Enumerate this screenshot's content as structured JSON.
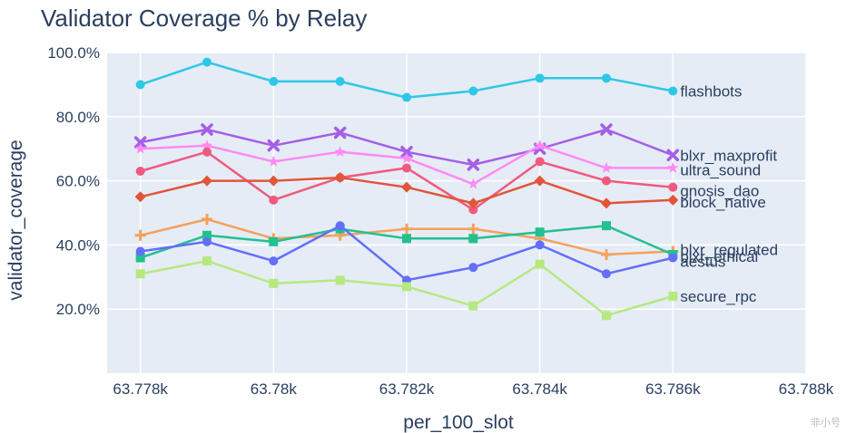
{
  "chart_data": {
    "type": "line",
    "title": "Validator Coverage % by Relay",
    "xlabel": "per_100_slot",
    "ylabel": "validator_coverage",
    "xlim": [
      63777.5,
      63788
    ],
    "ylim": [
      0,
      100
    ],
    "x_ticks": [
      63778,
      63780,
      63782,
      63784,
      63786,
      63788
    ],
    "x_tick_labels": [
      "63.778k",
      "63.78k",
      "63.782k",
      "63.784k",
      "63.786k",
      "63.788k"
    ],
    "y_ticks": [
      20,
      40,
      60,
      80,
      100
    ],
    "y_tick_labels": [
      "20.0%",
      "40.0%",
      "60.0%",
      "80.0%",
      "100.0%"
    ],
    "grid": true,
    "legend": "inline labels at right end of each line",
    "x": [
      63778,
      63779,
      63780,
      63781,
      63782,
      63783,
      63784,
      63785,
      63786
    ],
    "series": [
      {
        "name": "flashbots",
        "color": "#2fc7e6",
        "marker": "circle",
        "values": [
          90,
          97,
          91,
          91,
          86,
          88,
          92,
          92,
          88
        ]
      },
      {
        "name": "blxr_maxprofit",
        "color": "#a55ee6",
        "marker": "x",
        "values": [
          72,
          76,
          71,
          75,
          69,
          65,
          70,
          76,
          68
        ]
      },
      {
        "name": "ultra_sound",
        "color": "#ff8af3",
        "marker": "star",
        "values": [
          70,
          71,
          66,
          69,
          67,
          59,
          71,
          64,
          64
        ]
      },
      {
        "name": "gnosis_dao",
        "color": "#ef5a7e",
        "marker": "circle",
        "values": [
          63,
          69,
          54,
          61,
          64,
          51,
          66,
          60,
          58
        ]
      },
      {
        "name": "block_native",
        "color": "#e15539",
        "marker": "diamond",
        "values": [
          55,
          60,
          60,
          61,
          58,
          53,
          60,
          53,
          54
        ]
      },
      {
        "name": "blxr_regulated",
        "color": "#f5a05a",
        "marker": "cross",
        "values": [
          43,
          48,
          42,
          43,
          45,
          45,
          42,
          37,
          38
        ]
      },
      {
        "name": "blxr_ethical",
        "color": "#22c08f",
        "marker": "square",
        "values": [
          36,
          43,
          41,
          45,
          42,
          42,
          44,
          46,
          37
        ]
      },
      {
        "name": "aestus",
        "color": "#636efa",
        "marker": "circle",
        "values": [
          38,
          41,
          35,
          46,
          29,
          33,
          40,
          31,
          36
        ]
      },
      {
        "name": "secure_rpc",
        "color": "#b6e880",
        "marker": "square",
        "values": [
          31,
          35,
          28,
          29,
          27,
          21,
          34,
          18,
          24
        ]
      }
    ],
    "watermark": "非小号"
  }
}
